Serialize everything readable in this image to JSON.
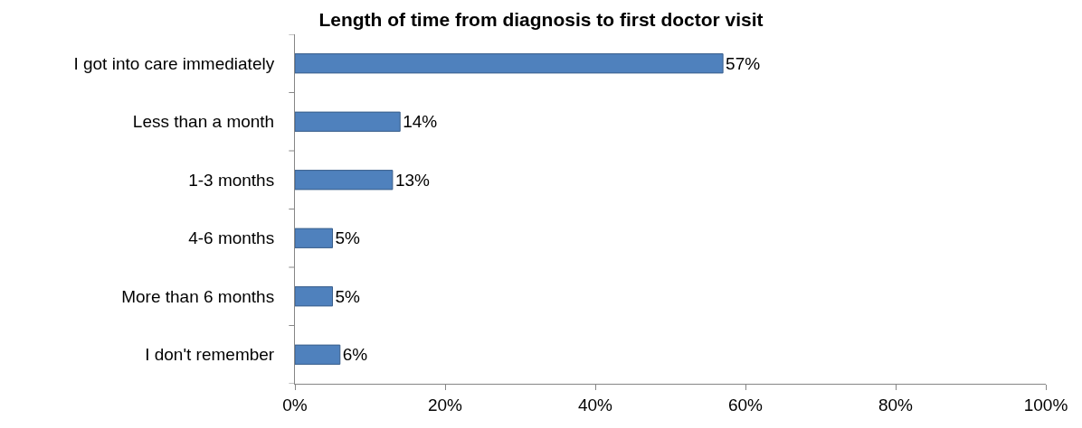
{
  "chart_data": {
    "type": "bar",
    "orientation": "horizontal",
    "title": "Length of time from diagnosis to first doctor visit",
    "categories": [
      "I got into care immediately",
      "Less than a month",
      "1-3 months",
      "4-6 months",
      "More than 6 months",
      "I don't remember"
    ],
    "values": [
      57,
      14,
      13,
      5,
      5,
      6
    ],
    "value_labels": [
      "57%",
      "14%",
      "13%",
      "5%",
      "5%",
      "6%"
    ],
    "color": "#4f81bd",
    "xlim": [
      0,
      100
    ],
    "xticks": [
      {
        "value": 0,
        "label": "0%"
      },
      {
        "value": 20,
        "label": "20%"
      },
      {
        "value": 40,
        "label": "40%"
      },
      {
        "value": 60,
        "label": "60%"
      },
      {
        "value": 80,
        "label": "80%"
      },
      {
        "value": 100,
        "label": "100%"
      }
    ],
    "grid": false
  }
}
